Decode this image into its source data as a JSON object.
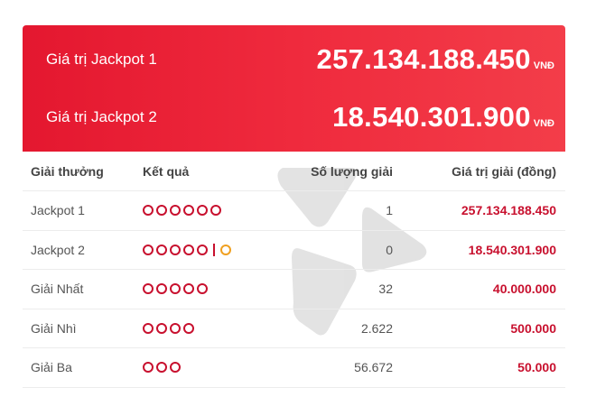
{
  "banner": {
    "jackpot1_label": "Giá trị Jackpot 1",
    "jackpot1_amount": "257.134.188.450",
    "jackpot2_label": "Giá trị Jackpot 2",
    "jackpot2_amount": "18.540.301.900",
    "currency": "VNĐ"
  },
  "table": {
    "headers": {
      "prize": "Giải thưởng",
      "result": "Kết quả",
      "winners": "Số lượng giải",
      "value": "Giá trị giải (đồng)"
    },
    "rows": [
      {
        "prize": "Jackpot 1",
        "balls": 6,
        "bonus": false,
        "winners": "1",
        "value": "257.134.188.450"
      },
      {
        "prize": "Jackpot 2",
        "balls": 5,
        "bonus": true,
        "winners": "0",
        "value": "18.540.301.900"
      },
      {
        "prize": "Giải Nhất",
        "balls": 5,
        "bonus": false,
        "winners": "32",
        "value": "40.000.000"
      },
      {
        "prize": "Giải Nhì",
        "balls": 4,
        "bonus": false,
        "winners": "2.622",
        "value": "500.000"
      },
      {
        "prize": "Giải Ba",
        "balls": 3,
        "bonus": false,
        "winners": "56.672",
        "value": "50.000"
      }
    ]
  },
  "colors": {
    "banner_red": "#e4172f",
    "prize_red": "#c8102e",
    "bonus_orange": "#f0a020"
  }
}
